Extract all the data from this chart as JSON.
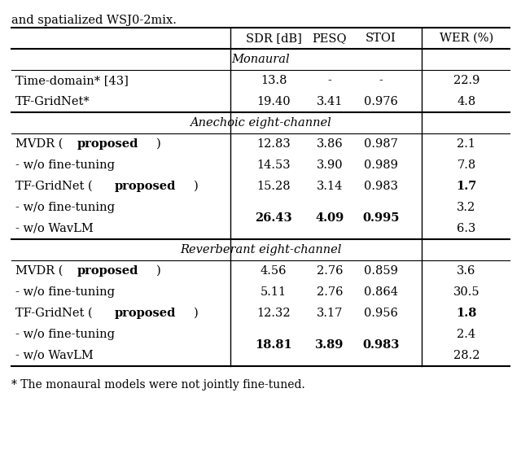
{
  "top_text": "and spatialized WSJ0-2mix.",
  "col_headers": [
    "SDR [dB]",
    "PESQ",
    "STOI",
    "WER (%)"
  ],
  "sections": [
    {
      "title": "Monaural",
      "rows": [
        {
          "label": [
            [
              "Time-domain* [43]",
              false
            ]
          ],
          "sdr": [
            "13.8",
            false
          ],
          "pesq": [
            "-",
            false
          ],
          "stoi": [
            "-",
            false
          ],
          "wer": [
            "22.9",
            false
          ]
        },
        {
          "label": [
            [
              "TF-GridNet*",
              false
            ]
          ],
          "sdr": [
            "19.40",
            false
          ],
          "pesq": [
            "3.41",
            false
          ],
          "stoi": [
            "0.976",
            false
          ],
          "wer": [
            "4.8",
            false
          ]
        }
      ]
    },
    {
      "title": "Anechoic eight-channel",
      "rows": [
        {
          "label": [
            [
              "MVDR (",
              false
            ],
            [
              "proposed",
              true
            ],
            [
              ")",
              false
            ]
          ],
          "sdr": [
            "12.83",
            false
          ],
          "pesq": [
            "3.86",
            false
          ],
          "stoi": [
            "0.987",
            false
          ],
          "wer": [
            "2.1",
            false
          ]
        },
        {
          "label": [
            [
              "- w/o fine-tuning",
              false
            ]
          ],
          "sdr": [
            "14.53",
            false
          ],
          "pesq": [
            "3.90",
            false
          ],
          "stoi": [
            "0.989",
            false
          ],
          "wer": [
            "7.8",
            false
          ]
        },
        {
          "label": [
            [
              "TF-GridNet (",
              false
            ],
            [
              "proposed",
              true
            ],
            [
              ")",
              false
            ]
          ],
          "sdr": [
            "15.28",
            false
          ],
          "pesq": [
            "3.14",
            false
          ],
          "stoi": [
            "0.983",
            false
          ],
          "wer": [
            "1.7",
            true
          ]
        },
        {
          "label": [
            [
              "- w/o fine-tuning",
              false
            ]
          ],
          "sdr": [
            "26.43",
            true
          ],
          "pesq": [
            "4.09",
            true
          ],
          "stoi": [
            "0.995",
            true
          ],
          "wer": [
            "3.2",
            false
          ],
          "merged_below": true
        },
        {
          "label": [
            [
              "- w/o WavLM",
              false
            ]
          ],
          "sdr": null,
          "pesq": null,
          "stoi": null,
          "wer": [
            "6.3",
            false
          ],
          "is_merged": true
        }
      ]
    },
    {
      "title": "Reverberant eight-channel",
      "rows": [
        {
          "label": [
            [
              "MVDR (",
              false
            ],
            [
              "proposed",
              true
            ],
            [
              ")",
              false
            ]
          ],
          "sdr": [
            "4.56",
            false
          ],
          "pesq": [
            "2.76",
            false
          ],
          "stoi": [
            "0.859",
            false
          ],
          "wer": [
            "3.6",
            false
          ]
        },
        {
          "label": [
            [
              "- w/o fine-tuning",
              false
            ]
          ],
          "sdr": [
            "5.11",
            false
          ],
          "pesq": [
            "2.76",
            false
          ],
          "stoi": [
            "0.864",
            false
          ],
          "wer": [
            "30.5",
            false
          ]
        },
        {
          "label": [
            [
              "TF-GridNet (",
              false
            ],
            [
              "proposed",
              true
            ],
            [
              ")",
              false
            ]
          ],
          "sdr": [
            "12.32",
            false
          ],
          "pesq": [
            "3.17",
            false
          ],
          "stoi": [
            "0.956",
            false
          ],
          "wer": [
            "1.8",
            true
          ]
        },
        {
          "label": [
            [
              "- w/o fine-tuning",
              false
            ]
          ],
          "sdr": [
            "18.81",
            true
          ],
          "pesq": [
            "3.89",
            true
          ],
          "stoi": [
            "0.983",
            true
          ],
          "wer": [
            "2.4",
            false
          ],
          "merged_below": true
        },
        {
          "label": [
            [
              "- w/o WavLM",
              false
            ]
          ],
          "sdr": null,
          "pesq": null,
          "stoi": null,
          "wer": [
            "28.2",
            false
          ],
          "is_merged": true
        }
      ]
    }
  ],
  "footnote": "* The monaural models were not jointly fine-tuned.",
  "font_size": 10.5,
  "background_color": "#ffffff"
}
